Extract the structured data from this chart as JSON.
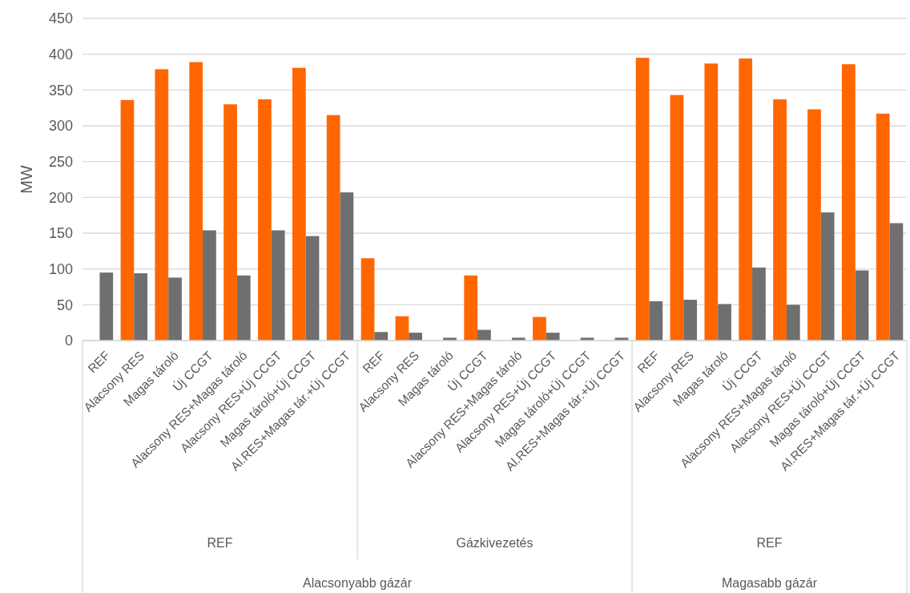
{
  "chart_data": {
    "type": "bar",
    "ylabel": "MW",
    "categories": [
      "REF",
      "Alacsony RES",
      "Magas tároló",
      "Új CCGT",
      "Alacsony RES+Magas tároló",
      "Alacsony RES+Új CCGT",
      "Magas tároló+Új CCGT",
      "Al.RES+Magas tár.+Új CCGT",
      "REF",
      "Alacsony RES",
      "Magas tároló",
      "Új CCGT",
      "Alacsony RES+Magas tároló",
      "Alacsony RES+Új CCGT",
      "Magas tároló+Új CCGT",
      "Al.RES+Magas tár.+Új CCGT",
      "REF",
      "Alacsony RES",
      "Magas tároló",
      "Új CCGT",
      "Alacsony RES+Magas tároló",
      "Alacsony RES+Új CCGT",
      "Magas tároló+Új CCGT",
      "Al.RES+Magas tár.+Új CCGT"
    ],
    "series": [
      {
        "color": "#ff6600",
        "values": [
          0,
          336,
          379,
          389,
          330,
          337,
          381,
          315,
          115,
          34,
          0,
          91,
          0,
          33,
          0,
          0,
          395,
          343,
          387,
          394,
          337,
          323,
          386,
          317
        ]
      },
      {
        "color": "#6f6f6f",
        "values": [
          95,
          94,
          88,
          154,
          91,
          154,
          146,
          207,
          12,
          11,
          4,
          15,
          4,
          11,
          4,
          4,
          55,
          57,
          51,
          102,
          50,
          179,
          98,
          164
        ]
      }
    ],
    "ylim": [
      0,
      450
    ],
    "yticks": [
      0,
      50,
      100,
      150,
      200,
      250,
      300,
      350,
      400,
      450
    ],
    "grid": "y",
    "annotations": [
      "REF",
      "Gázkivezetés",
      "REF",
      "Alacsonyabb gázár",
      "Magasabb gázár"
    ]
  }
}
